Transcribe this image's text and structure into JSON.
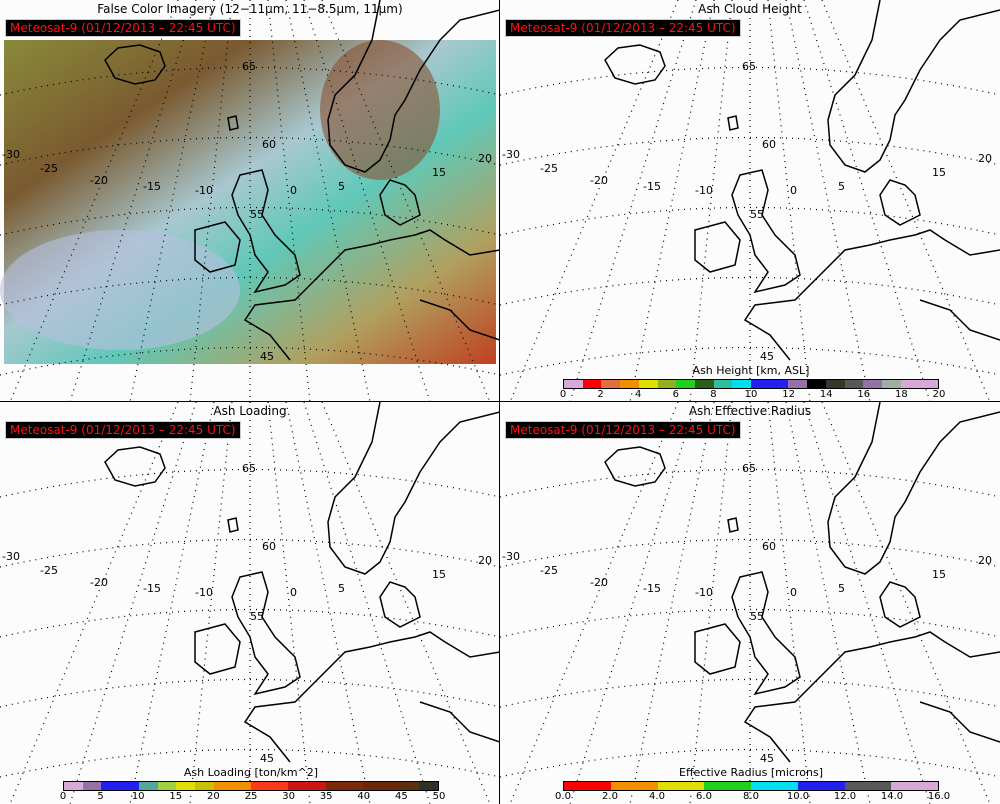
{
  "panels": [
    {
      "title": "False Color Imagery (12−11μm, 11−8.5μm, 11μm)",
      "stamp": "Meteosat-9  (01/12/2013 – 22:45 UTC)",
      "imagery": "false-color"
    },
    {
      "title": "Ash Cloud Height",
      "stamp": "Meteosat-9  (01/12/2013 – 22:45 UTC)",
      "imagery": "none"
    },
    {
      "title": "Ash Loading",
      "stamp": "Meteosat-9  (01/12/2013 – 22:45 UTC)",
      "imagery": "none"
    },
    {
      "title": "Ash Effective Radius",
      "stamp": "Meteosat-9  (01/12/2013 – 22:45 UTC)",
      "imagery": "none"
    }
  ],
  "graticule": {
    "lon_labels": [
      "-30",
      "-25",
      "-20",
      "-15",
      "-10",
      "0",
      "5",
      "15",
      "20"
    ],
    "lat_labels": [
      "65",
      "60",
      "55",
      "45"
    ]
  },
  "colorbars": {
    "height": {
      "title": "Ash Height [km, ASL]",
      "ticks": [
        "0",
        "2",
        "4",
        "6",
        "8",
        "10",
        "12",
        "14",
        "16",
        "18",
        "20"
      ],
      "colors": [
        "#d8a8d8",
        "#ff0000",
        "#e07040",
        "#f09000",
        "#e0e000",
        "#90b020",
        "#20d020",
        "#286018",
        "#30c0a0",
        "#00e0f0",
        "#2020f0",
        "#2020f0",
        "#9870a8",
        "#000000",
        "#383828",
        "#585858",
        "#9870a8",
        "#a0b0a0",
        "#d8a8d8",
        "#d8a8d8"
      ]
    },
    "loading": {
      "title": "Ash Loading [ton/km^2]",
      "ticks": [
        "0",
        "5",
        "10",
        "15",
        "20",
        "25",
        "30",
        "35",
        "40",
        "45",
        "50"
      ],
      "colors": [
        "#d8a8d8",
        "#9870a8",
        "#2020f0",
        "#2020f0",
        "#50a8a0",
        "#a0d040",
        "#e0e000",
        "#c8c000",
        "#f09000",
        "#f09000",
        "#ff3818",
        "#ff3818",
        "#c81810",
        "#c81810",
        "#7a2a08",
        "#7a2a08",
        "#6a2808",
        "#6a2808",
        "#5a3010",
        "#303028"
      ]
    },
    "radius": {
      "title": "Effective Radius [microns]",
      "ticks": [
        "0.0",
        "2.0",
        "4.0",
        "6.0",
        "8.0",
        "10.0",
        "12.0",
        "14.0",
        "16.0"
      ],
      "colors": [
        "#ff0000",
        "#ff0000",
        "#f09000",
        "#f09000",
        "#e0e000",
        "#e0e000",
        "#20d020",
        "#20d020",
        "#00e0f0",
        "#00e0f0",
        "#2020f0",
        "#2020f0",
        "#585858",
        "#585858",
        "#d8a8d8",
        "#d8a8d8"
      ]
    }
  }
}
